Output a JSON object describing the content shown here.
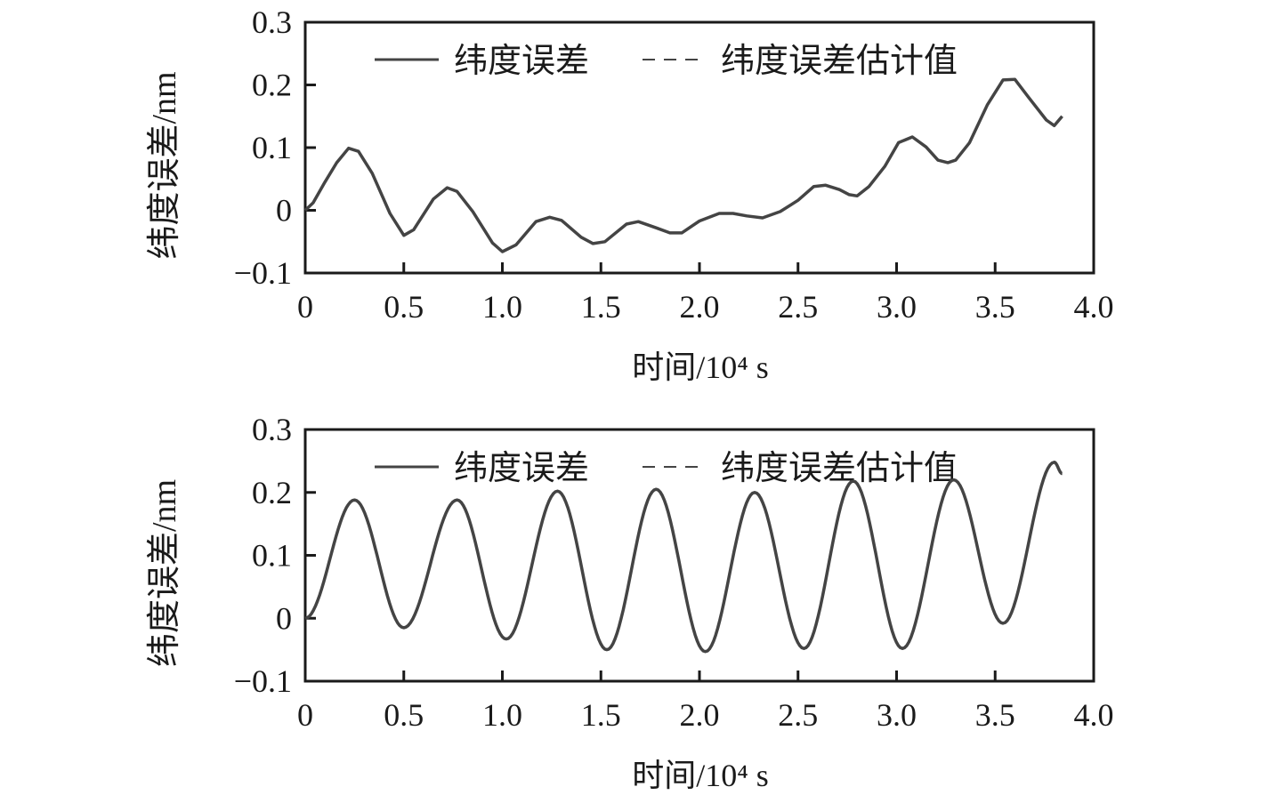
{
  "chart_data": [
    {
      "type": "line",
      "xlabel": "时间/10⁴ s",
      "ylabel": "纬度误差/nm",
      "xlim": [
        0,
        4.0
      ],
      "ylim": [
        -0.1,
        0.3
      ],
      "xticks": [
        "0",
        "0.5",
        "1.0",
        "1.5",
        "2.0",
        "2.5",
        "3.0",
        "3.5",
        "4.0"
      ],
      "yticks": [
        "−0.1",
        "0",
        "0.1",
        "0.2",
        "0.3"
      ],
      "legend_position": "top",
      "legend": [
        "纬度误差",
        "纬度误差估计值"
      ],
      "interpolation": "linear",
      "series": [
        {
          "name": "纬度误差",
          "style": "solid",
          "x": [
            0,
            0.04,
            0.1,
            0.16,
            0.22,
            0.27,
            0.34,
            0.43,
            0.5,
            0.55,
            0.65,
            0.72,
            0.77,
            0.85,
            0.95,
            1.0,
            1.07,
            1.17,
            1.24,
            1.3,
            1.4,
            1.46,
            1.52,
            1.63,
            1.69,
            1.78,
            1.85,
            1.91,
            2.0,
            2.1,
            2.17,
            2.24,
            2.32,
            2.41,
            2.5,
            2.58,
            2.64,
            2.71,
            2.76,
            2.8,
            2.86,
            2.94,
            3.01,
            3.08,
            3.15,
            3.21,
            3.26,
            3.3,
            3.37,
            3.46,
            3.54,
            3.6,
            3.67,
            3.76,
            3.8,
            3.84
          ],
          "y": [
            0,
            0.012,
            0.045,
            0.076,
            0.099,
            0.094,
            0.059,
            -0.005,
            -0.04,
            -0.031,
            0.018,
            0.036,
            0.03,
            -0.002,
            -0.052,
            -0.066,
            -0.055,
            -0.018,
            -0.011,
            -0.016,
            -0.043,
            -0.053,
            -0.05,
            -0.022,
            -0.018,
            -0.028,
            -0.036,
            -0.036,
            -0.017,
            -0.005,
            -0.005,
            -0.009,
            -0.012,
            -0.002,
            0.016,
            0.038,
            0.04,
            0.033,
            0.025,
            0.023,
            0.038,
            0.07,
            0.108,
            0.117,
            0.101,
            0.08,
            0.076,
            0.08,
            0.108,
            0.168,
            0.208,
            0.209,
            0.18,
            0.144,
            0.135,
            0.15
          ]
        },
        {
          "name": "纬度误差估计值",
          "style": "dashed",
          "x": [],
          "y": []
        }
      ]
    },
    {
      "type": "line",
      "xlabel": "时间/10⁴ s",
      "ylabel": "纬度误差/nm",
      "xlim": [
        0,
        4.0
      ],
      "ylim": [
        -0.1,
        0.3
      ],
      "xticks": [
        "0",
        "0.5",
        "1.0",
        "1.5",
        "2.0",
        "2.5",
        "3.0",
        "3.5",
        "4.0"
      ],
      "yticks": [
        "−0.1",
        "0",
        "0.1",
        "0.2",
        "0.3"
      ],
      "legend_position": "top",
      "legend": [
        "纬度误差",
        "纬度误差估计值"
      ],
      "interpolation": "cosine-between-extrema",
      "series": [
        {
          "name": "纬度误差",
          "style": "solid",
          "x": [
            0,
            0.25,
            0.5,
            0.77,
            1.02,
            1.28,
            1.53,
            1.78,
            2.03,
            2.28,
            2.53,
            2.78,
            3.03,
            3.29,
            3.54,
            3.8,
            3.84
          ],
          "y": [
            0,
            0.188,
            -0.015,
            0.188,
            -0.033,
            0.202,
            -0.05,
            0.205,
            -0.053,
            0.2,
            -0.048,
            0.218,
            -0.048,
            0.22,
            -0.008,
            0.248,
            0.23
          ]
        },
        {
          "name": "纬度误差估计值",
          "style": "dashed",
          "x": [],
          "y": []
        }
      ]
    }
  ]
}
